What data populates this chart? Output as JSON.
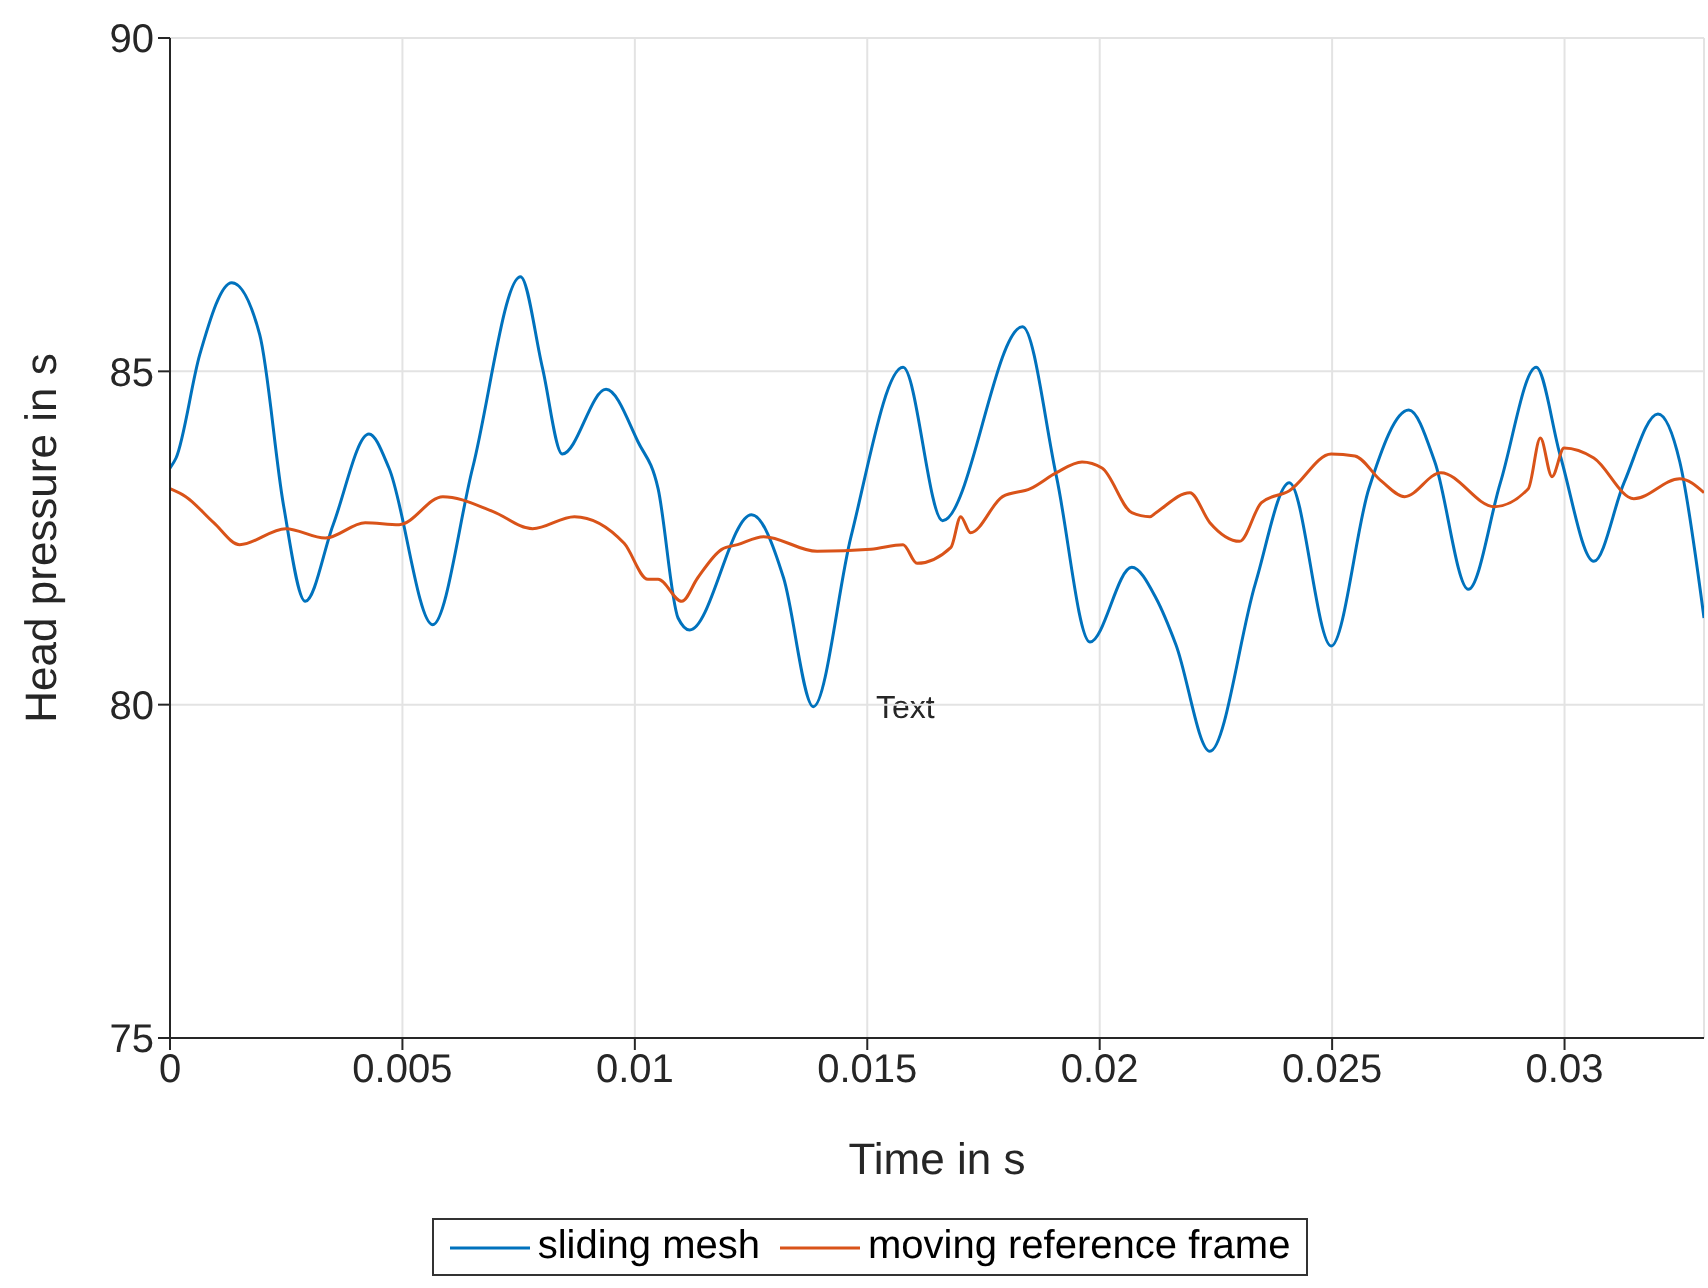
{
  "chart_data": {
    "type": "line",
    "xlabel": "Time in s",
    "ylabel": "Head pressure in s",
    "xlim": [
      0,
      0.033
    ],
    "xticks": [
      0,
      0.005,
      0.01,
      0.015,
      0.02,
      0.025,
      0.03
    ],
    "ylim": [
      75,
      90
    ],
    "yticks": [
      75,
      80,
      85,
      90
    ],
    "grid": true,
    "legend": "bottom",
    "marker": "none",
    "line_style": "solid",
    "annotations": [
      "Text"
    ],
    "series": [
      {
        "name": "sliding mesh",
        "color": "#0072bd",
        "x": [
          0,
          0.00013,
          0.00064,
          0.00133,
          0.00193,
          0.00244,
          0.00291,
          0.00351,
          0.00428,
          0.00471,
          0.00565,
          0.00651,
          0.00754,
          0.00801,
          0.00844,
          0.00938,
          0.01007,
          0.0105,
          0.01093,
          0.01118,
          0.01251,
          0.0132,
          0.01384,
          0.01465,
          0.01577,
          0.01662,
          0.01834,
          0.01907,
          0.01979,
          0.02069,
          0.02121,
          0.02164,
          0.02237,
          0.02335,
          0.02408,
          0.02498,
          0.02579,
          0.02665,
          0.02721,
          0.02793,
          0.02862,
          0.02939,
          0.02991,
          0.03063,
          0.03128,
          0.03201,
          0.03248,
          0.033
        ],
        "values": [
          83.55,
          83.7,
          85.25,
          86.33,
          85.55,
          83.0,
          81.55,
          82.7,
          84.06,
          83.55,
          81.2,
          83.55,
          86.42,
          85.06,
          83.76,
          84.73,
          83.94,
          83.24,
          81.3,
          81.12,
          82.85,
          81.9,
          79.97,
          82.52,
          85.06,
          82.76,
          85.67,
          83.42,
          80.94,
          82.06,
          81.6,
          80.9,
          79.3,
          81.82,
          83.33,
          80.88,
          83.24,
          84.42,
          83.64,
          81.73,
          83.33,
          85.06,
          83.73,
          82.15,
          83.33,
          84.36,
          83.64,
          81.3
        ]
      },
      {
        "name": "moving reference frame",
        "color": "#d95319",
        "x": [
          0,
          0.00034,
          0.00094,
          0.0015,
          0.00249,
          0.00334,
          0.0042,
          0.00493,
          0.00587,
          0.00694,
          0.0078,
          0.0087,
          0.00977,
          0.01028,
          0.0105,
          0.01101,
          0.01135,
          0.01187,
          0.01221,
          0.01277,
          0.01392,
          0.01508,
          0.01577,
          0.01607,
          0.0168,
          0.01701,
          0.01722,
          0.01791,
          0.01851,
          0.01907,
          0.01962,
          0.02005,
          0.02069,
          0.02108,
          0.02121,
          0.02194,
          0.02237,
          0.02301,
          0.02348,
          0.02408,
          0.02498,
          0.02549,
          0.02605,
          0.02656,
          0.02734,
          0.02849,
          0.02922,
          0.02948,
          0.02973,
          0.02999,
          0.03063,
          0.03149,
          0.03248,
          0.033
        ],
        "values": [
          83.24,
          83.12,
          82.73,
          82.4,
          82.64,
          82.5,
          82.73,
          82.7,
          83.12,
          82.9,
          82.64,
          82.82,
          82.42,
          81.88,
          81.88,
          81.55,
          81.9,
          82.33,
          82.4,
          82.52,
          82.3,
          82.33,
          82.4,
          82.12,
          82.36,
          82.82,
          82.58,
          83.12,
          83.24,
          83.48,
          83.64,
          83.55,
          82.88,
          82.82,
          82.88,
          83.18,
          82.73,
          82.45,
          83.03,
          83.21,
          83.76,
          83.73,
          83.36,
          83.12,
          83.48,
          82.97,
          83.24,
          84.0,
          83.42,
          83.85,
          83.7,
          83.09,
          83.39,
          83.18
        ]
      }
    ]
  }
}
